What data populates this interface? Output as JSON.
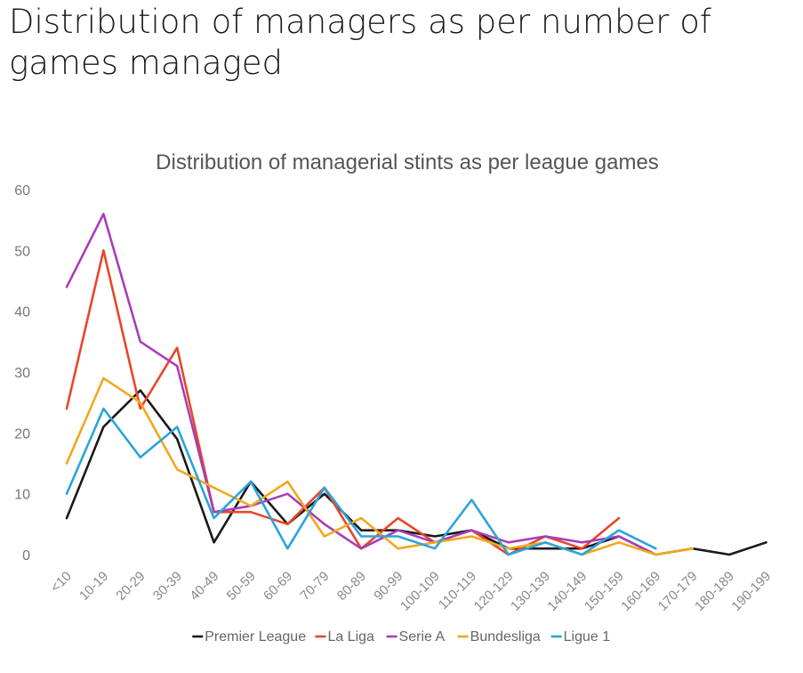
{
  "page": {
    "heading": "Distribution of managers as per number of games managed"
  },
  "chart_data": {
    "type": "line",
    "title": "Distribution of managerial stints as per league games",
    "xlabel": "",
    "ylabel": "",
    "ylim": [
      0,
      60
    ],
    "yticks": [
      "0",
      "10",
      "20",
      "30",
      "40",
      "50",
      "60"
    ],
    "grid": false,
    "legend_position": "bottom",
    "categories": [
      "<10",
      "10-19",
      "20-29",
      "30-39",
      "40-49",
      "50-59",
      "60-69",
      "70-79",
      "80-89",
      "90-99",
      "100-109",
      "110-119",
      "120-129",
      "130-139",
      "140-149",
      "150-159",
      "160-169",
      "170-179",
      "180-189",
      "190-199"
    ],
    "series": [
      {
        "name": "Premier League",
        "color": "#1a1a1a",
        "values": [
          6,
          21,
          27,
          19,
          2,
          12,
          5,
          10,
          4,
          4,
          3,
          4,
          1,
          1,
          1,
          3,
          0,
          1,
          0,
          2
        ]
      },
      {
        "name": "La Liga",
        "color": "#e8462b",
        "values": [
          24,
          50,
          24,
          34,
          7,
          7,
          5,
          11,
          1,
          6,
          2,
          4,
          0,
          3,
          1,
          6,
          null,
          null,
          null,
          null
        ]
      },
      {
        "name": "Serie A",
        "color": "#a93db8",
        "values": [
          44,
          56,
          35,
          31,
          7,
          8,
          10,
          5,
          1,
          4,
          2,
          4,
          2,
          3,
          2,
          3,
          0,
          null,
          null,
          null
        ]
      },
      {
        "name": "Bundesliga",
        "color": "#f2a81d",
        "values": [
          15,
          29,
          25,
          14,
          11,
          8,
          12,
          3,
          6,
          1,
          2,
          3,
          1,
          2,
          0,
          2,
          0,
          1,
          null,
          null
        ]
      },
      {
        "name": "Ligue 1",
        "color": "#2aa4dc",
        "values": [
          10,
          24,
          16,
          21,
          6,
          12,
          1,
          11,
          3,
          3,
          1,
          9,
          0,
          2,
          0,
          4,
          1,
          null,
          null,
          null
        ]
      }
    ]
  }
}
